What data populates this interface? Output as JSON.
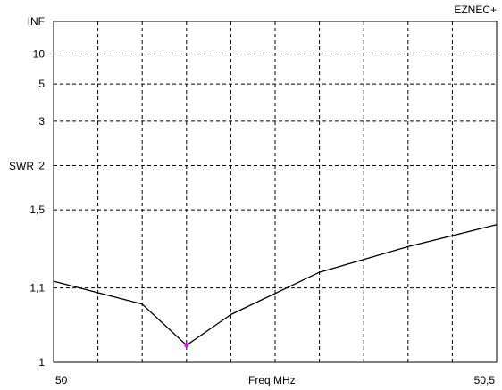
{
  "program_label": "EZNEC+",
  "chart_data": {
    "type": "line",
    "title": "",
    "xlabel": "Freq MHz",
    "ylabel": "SWR",
    "xlim": [
      50,
      50.5
    ],
    "y_scale": "swr",
    "x_tick_labels": [
      {
        "value": 50,
        "label": "50"
      },
      {
        "value": 50.5,
        "label": "50,5"
      }
    ],
    "x_gridlines": [
      50.05,
      50.1,
      50.15,
      50.2,
      50.25,
      50.3,
      50.35,
      50.4,
      50.45
    ],
    "y_ticks": [
      {
        "value": 1,
        "label": "1"
      },
      {
        "value": 1.1,
        "label": "1,1"
      },
      {
        "value": 1.5,
        "label": "1,5"
      },
      {
        "value": 2,
        "label": "2"
      },
      {
        "value": 3,
        "label": "3"
      },
      {
        "value": 5,
        "label": "5"
      },
      {
        "value": 10,
        "label": "10"
      },
      {
        "value": "INF",
        "label": "INF"
      }
    ],
    "grid": true,
    "series": [
      {
        "color": "#000000",
        "x": [
          50,
          50.1,
          50.15,
          50.2,
          50.3,
          50.4,
          50.5
        ],
        "y": [
          1.12,
          1.06,
          1.005,
          1.04,
          1.15,
          1.26,
          1.39
        ]
      }
    ],
    "marker": {
      "x": 50.15,
      "y": 1.005,
      "color": "#ff00ff"
    }
  }
}
